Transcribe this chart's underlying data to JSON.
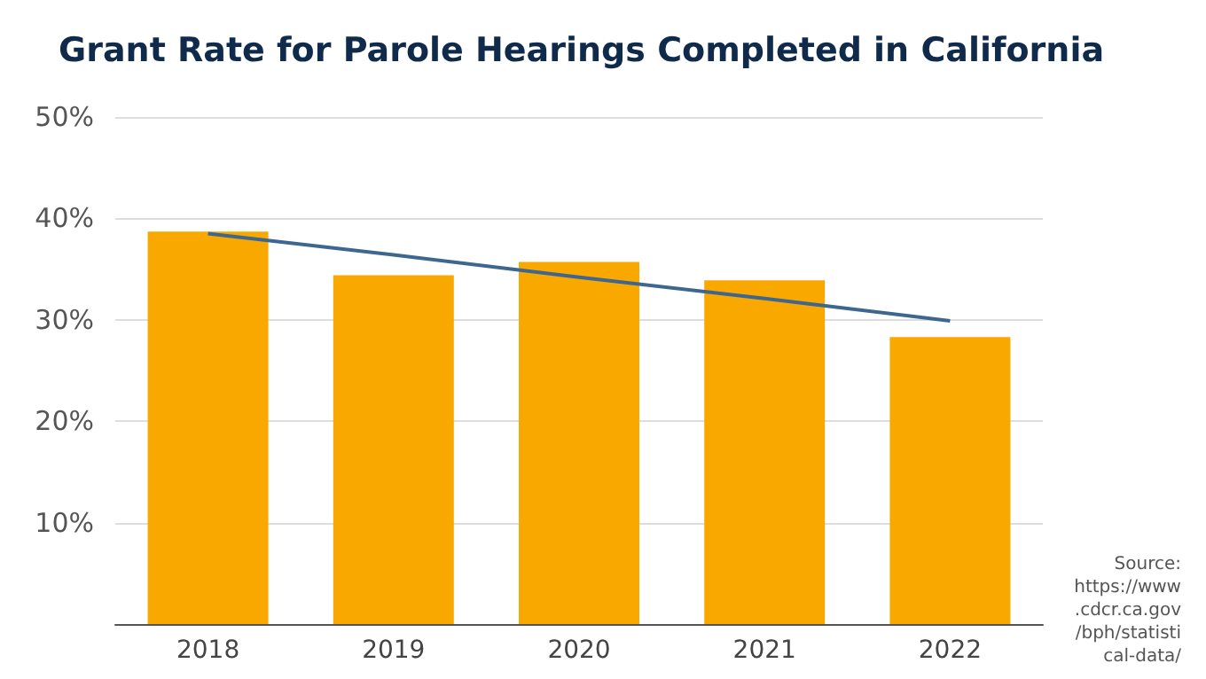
{
  "chart_data": {
    "type": "bar",
    "title": "Grant Rate for Parole Hearings Completed in California",
    "categories": [
      "2018",
      "2019",
      "2020",
      "2021",
      "2022"
    ],
    "series": [
      {
        "color": "#f9a800",
        "values": [
          38.7,
          34.4,
          35.7,
          33.9,
          28.3
        ]
      },
      {
        "type": "line",
        "color": "#3d6790",
        "values": [
          38.5,
          36.4,
          34.2,
          32.1,
          29.9
        ]
      }
    ],
    "ylim": [
      0,
      50
    ],
    "yticks": [
      {
        "value": 0,
        "label": null
      },
      {
        "value": 10,
        "label": "10%"
      },
      {
        "value": 20,
        "label": "20%"
      },
      {
        "value": 30,
        "label": "30%"
      },
      {
        "value": 40,
        "label": "40%"
      },
      {
        "value": 50,
        "label": "50%"
      }
    ],
    "grid": "y",
    "marker": "none",
    "annotations": [
      "Source: https://www.cdcr.ca.gov/bph/statistical-data/"
    ]
  }
}
